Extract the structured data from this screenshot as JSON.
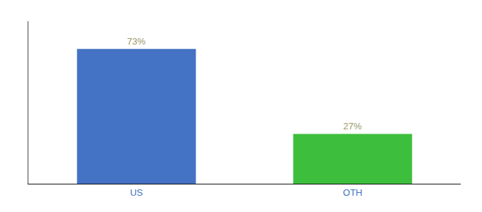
{
  "chart_data": {
    "type": "bar",
    "categories": [
      "US",
      "OTH"
    ],
    "values": [
      73,
      27
    ],
    "value_labels": [
      "73%",
      "27%"
    ],
    "data_labels": true,
    "colors": [
      "#4472c4",
      "#3dbf3d"
    ],
    "ylim": [
      0,
      88
    ],
    "tick_labels": "x",
    "grid": false
  }
}
